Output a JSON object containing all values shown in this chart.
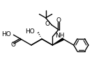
{
  "bg_color": "#ffffff",
  "bond_color": "#000000",
  "text_color": "#000000",
  "figsize": [
    1.45,
    1.11
  ],
  "dpi": 100,
  "xlim": [
    0,
    10
  ],
  "ylim": [
    0,
    7.7
  ]
}
